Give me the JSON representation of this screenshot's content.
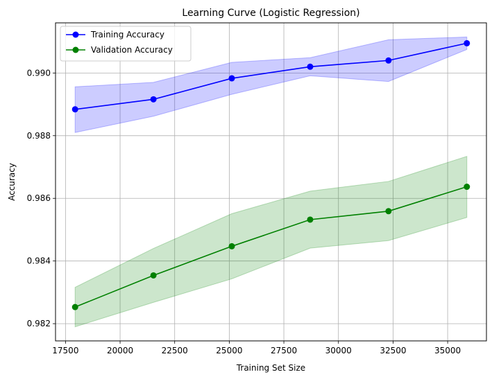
{
  "chart_data": {
    "type": "line",
    "title": "Learning Curve (Logistic Regression)",
    "xlabel": "Training Set Size",
    "ylabel": "Accuracy",
    "x": [
      17940,
      21528,
      25116,
      28704,
      32292,
      35880
    ],
    "xlim": [
      17043,
      36777
    ],
    "ylim": [
      0.98145,
      0.9916
    ],
    "xticks": [
      17500,
      20000,
      22500,
      25000,
      27500,
      30000,
      32500,
      35000
    ],
    "xtick_labels": [
      "17500",
      "20000",
      "22500",
      "25000",
      "27500",
      "30000",
      "32500",
      "35000"
    ],
    "yticks": [
      0.982,
      0.984,
      0.986,
      0.988,
      0.99
    ],
    "ytick_labels": [
      "0.982",
      "0.984",
      "0.986",
      "0.988",
      "0.990"
    ],
    "grid": true,
    "legend_position": "upper-left",
    "series": [
      {
        "name": "Training Accuracy",
        "color": "#0000ff",
        "band_color": "#0000ff",
        "values": [
          0.98884,
          0.98916,
          0.98983,
          0.9902,
          0.9904,
          0.99095
        ],
        "upper": [
          0.98956,
          0.9897,
          0.99034,
          0.99049,
          0.99106,
          0.99115
        ],
        "lower": [
          0.9881,
          0.98862,
          0.98932,
          0.98991,
          0.98973,
          0.99075
        ]
      },
      {
        "name": "Validation Accuracy",
        "color": "#008000",
        "band_color": "#008000",
        "values": [
          0.98253,
          0.98354,
          0.98447,
          0.98532,
          0.98559,
          0.98637
        ],
        "upper": [
          0.98316,
          0.9844,
          0.98551,
          0.98623,
          0.98654,
          0.98734
        ],
        "lower": [
          0.9819,
          0.98268,
          0.98343,
          0.98441,
          0.98465,
          0.98539
        ]
      }
    ]
  }
}
